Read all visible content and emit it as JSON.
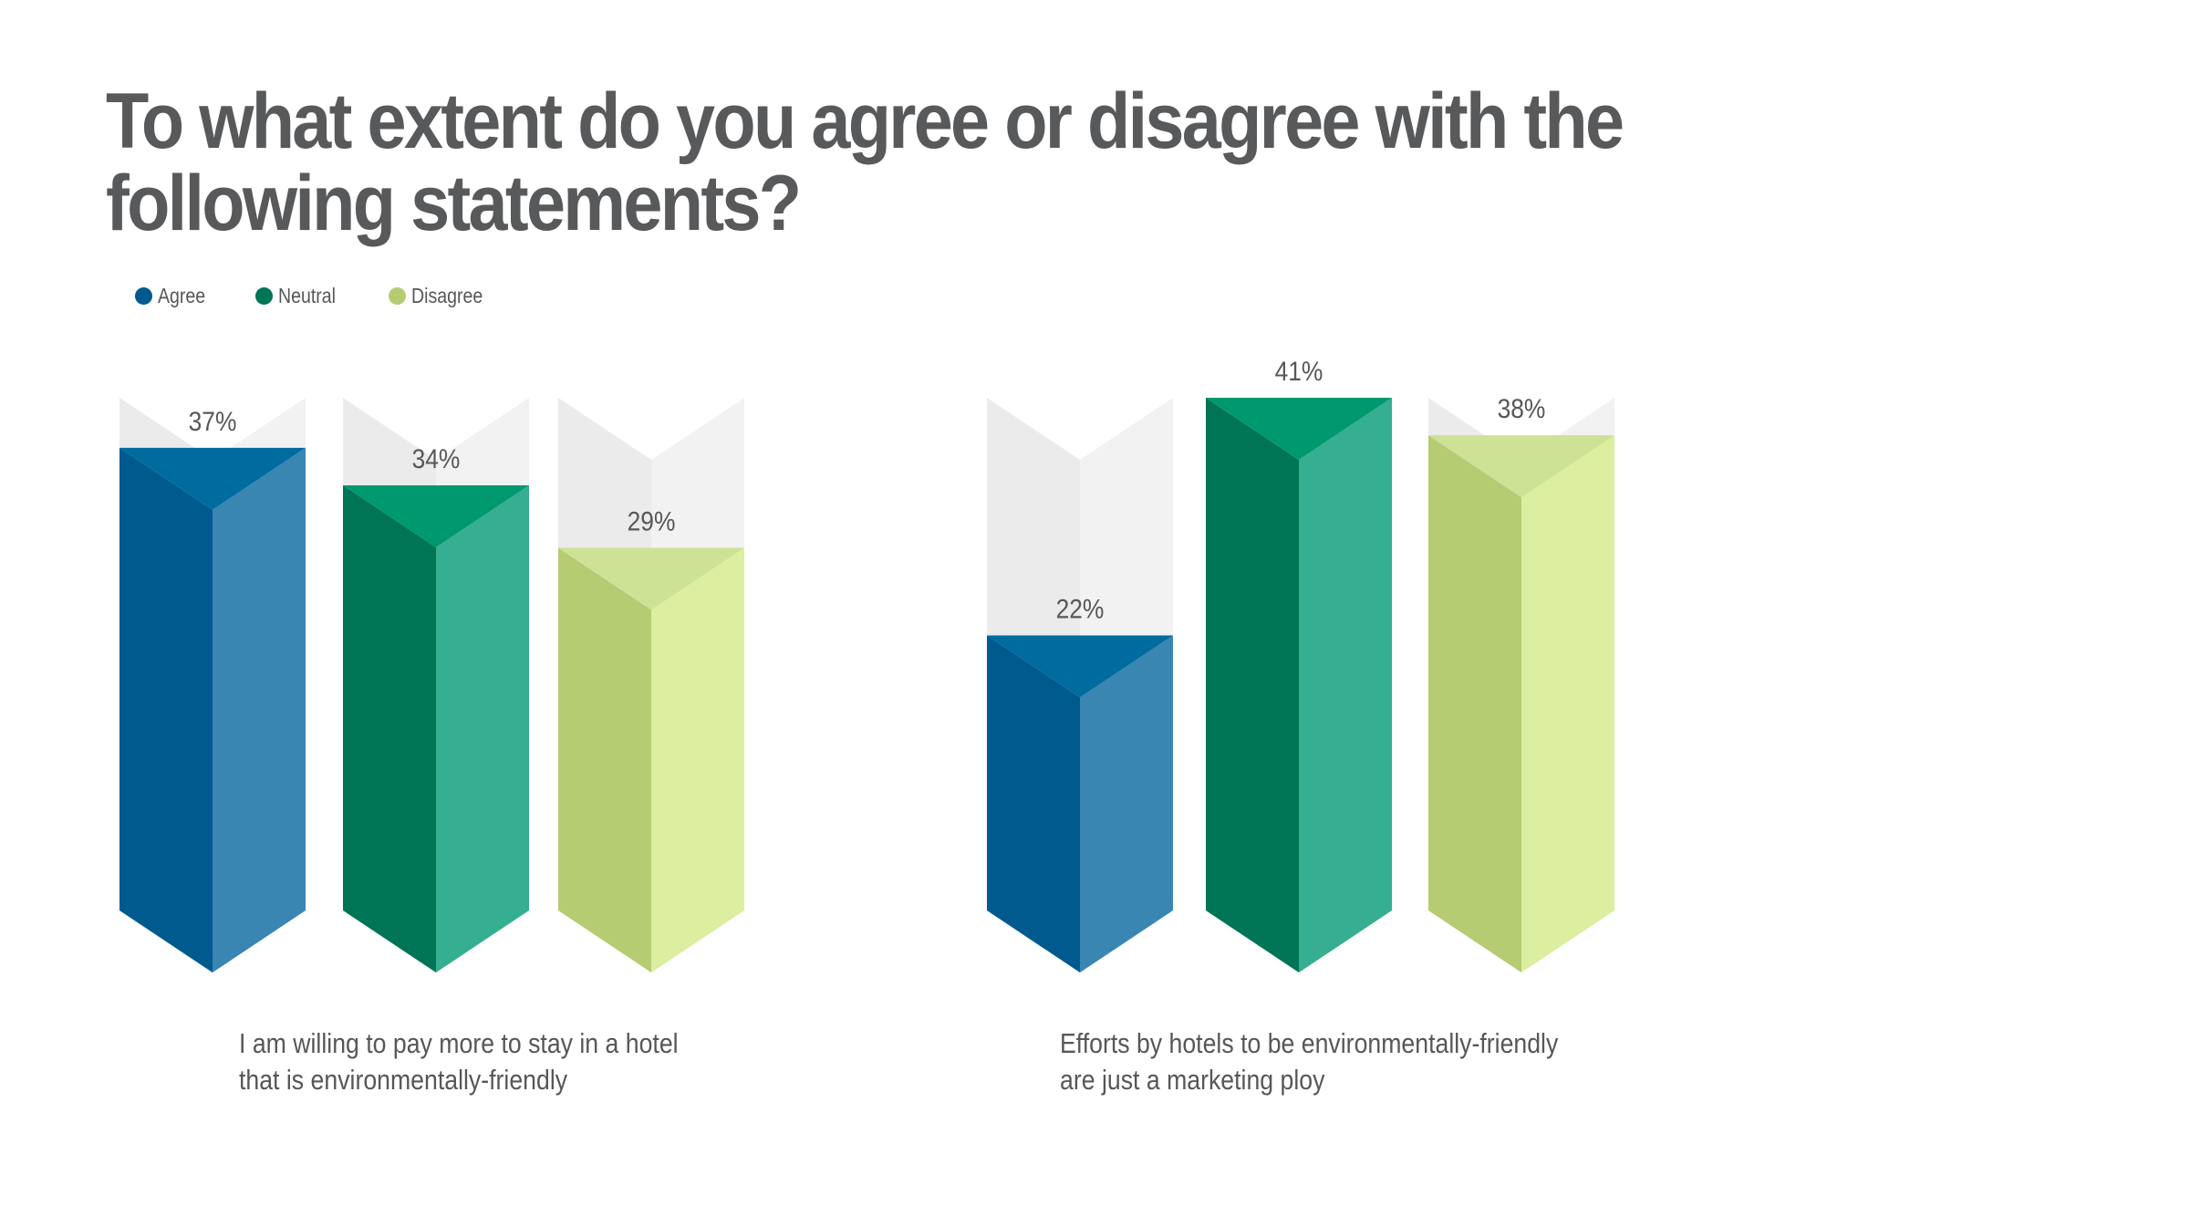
{
  "title": "To what extent do you agree or disagree with the following statements?",
  "legend": [
    {
      "label": "Agree",
      "color": "#005a8e"
    },
    {
      "label": "Neutral",
      "color": "#007555"
    },
    {
      "label": "Disagree",
      "color": "#b5cc72"
    }
  ],
  "chart_data": [
    {
      "type": "bar",
      "categories": [
        "Agree",
        "Neutral",
        "Disagree"
      ],
      "values": [
        37,
        34,
        29
      ],
      "value_labels": [
        "37%",
        "34%",
        "29%"
      ],
      "caption": [
        "I am willing to pay more to stay in a hotel",
        "that is environmentally-friendly"
      ],
      "ylim": [
        0,
        41
      ],
      "grid": false,
      "legend_position": "top-left"
    },
    {
      "type": "bar",
      "categories": [
        "Agree",
        "Neutral",
        "Disagree"
      ],
      "values": [
        22,
        41,
        38
      ],
      "value_labels": [
        "22%",
        "41%",
        "38%"
      ],
      "caption": [
        "Efforts by hotels to be environmentally-friendly",
        "are just a marketing ploy"
      ],
      "ylim": [
        0,
        41
      ],
      "grid": false,
      "legend_position": "top-left"
    }
  ],
  "palette": {
    "Agree": {
      "left": "#005a8e",
      "right": "#3886b1",
      "cap": "#006b9f"
    },
    "Neutral": {
      "left": "#007555",
      "right": "#35ae91",
      "cap": "#00996f"
    },
    "Disagree": {
      "left": "#b5cc72",
      "right": "#dcee9f",
      "cap": "#cde295"
    },
    "track": {
      "left": "#ebebeb",
      "right": "#f2f2f2"
    },
    "label": "#555759"
  }
}
